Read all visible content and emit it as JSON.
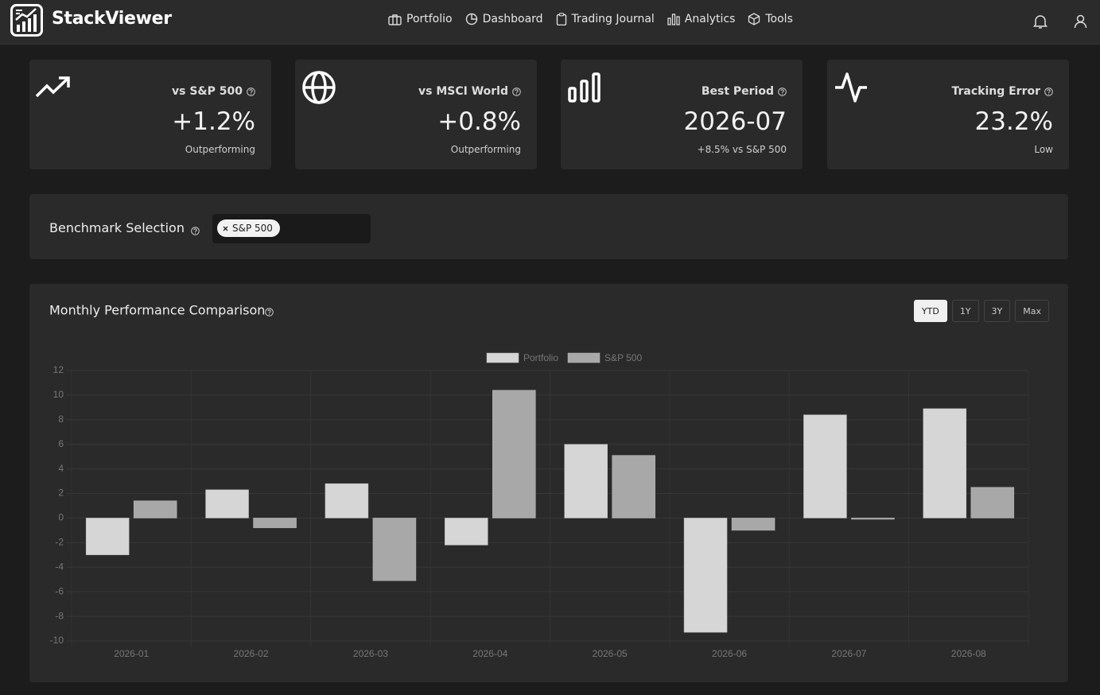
{
  "header": {
    "brand": "StackViewer",
    "nav": [
      "Portfolio",
      "Dashboard",
      "Trading Journal",
      "Analytics",
      "Tools"
    ]
  },
  "cards": [
    {
      "label": "vs S&P 500",
      "value": "+1.2%",
      "note": "Outperforming"
    },
    {
      "label": "vs MSCI World",
      "value": "+0.8%",
      "note": "Outperforming"
    },
    {
      "label": "Best Period",
      "value": "2026-07",
      "note": "+8.5% vs S&P 500"
    },
    {
      "label": "Tracking Error",
      "value": "23.2%",
      "note": "Low"
    }
  ],
  "benchmark": {
    "label": "Benchmark Selection",
    "chips": [
      "S&P 500"
    ]
  },
  "chart_data": {
    "type": "bar",
    "title": "Monthly Performance Comparison",
    "ranges": [
      "YTD",
      "1Y",
      "3Y",
      "Max"
    ],
    "active_range": "YTD",
    "categories": [
      "2026-01",
      "2026-02",
      "2026-03",
      "2026-04",
      "2026-05",
      "2026-06",
      "2026-07",
      "2026-08"
    ],
    "series": [
      {
        "name": "Portfolio",
        "color": "#d6d6d6",
        "values": [
          -3.0,
          2.3,
          2.8,
          -2.2,
          6.0,
          -9.3,
          8.4,
          8.9
        ]
      },
      {
        "name": "S&P 500",
        "color": "#a8a8a8",
        "values": [
          1.4,
          -0.8,
          -5.1,
          10.4,
          5.1,
          -1.0,
          -0.1,
          2.5
        ]
      }
    ],
    "ylim": [
      -10,
      12
    ],
    "yticks": [
      -10,
      -8,
      -6,
      -4,
      -2,
      0,
      2,
      4,
      6,
      8,
      10,
      12
    ],
    "grid": true,
    "legend": "top"
  }
}
